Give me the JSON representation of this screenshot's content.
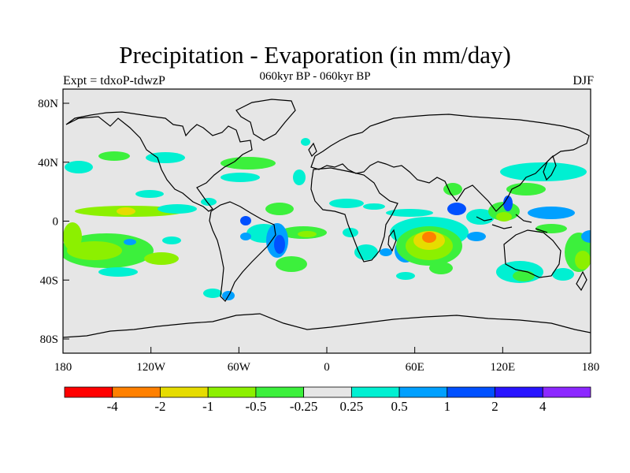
{
  "title": "Precipitation - Evaporation (in mm/day)",
  "subtitle": "060kyr BP - 060kyr BP",
  "left_label": "Expt = tdxoP-tdwzP",
  "right_label": "DJF",
  "axes": {
    "lat_ticks": [
      "80N",
      "40N",
      "0",
      "40S",
      "80S"
    ],
    "lon_ticks": [
      "180",
      "120W",
      "60W",
      "0",
      "60E",
      "120E",
      "180"
    ]
  },
  "colorbar": {
    "colors": [
      "#ff0000",
      "#ff8000",
      "#e6dc00",
      "#8cf000",
      "#3cf03c",
      "#e6e6e6",
      "#00f0d2",
      "#00a0ff",
      "#0050ff",
      "#2814ff",
      "#8c28ff"
    ],
    "labels": [
      "-4",
      "-2",
      "-1",
      "-0.5",
      "-0.25",
      "0.25",
      "0.5",
      "1",
      "2",
      "4"
    ]
  },
  "land_color": "#e6e6e6"
}
